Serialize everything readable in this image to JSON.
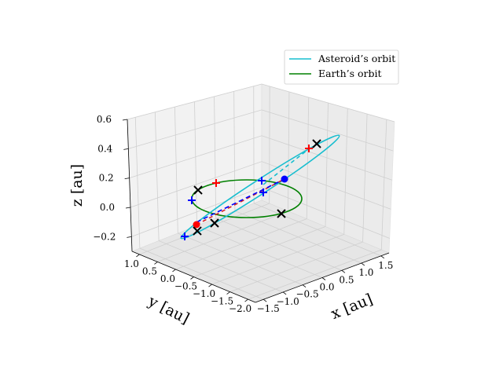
{
  "chart_data": {
    "type": "line3d",
    "xlabel": "x [au]",
    "ylabel": "y [au]",
    "zlabel": "z [au]",
    "x_ticks": [
      "−1.5",
      "−1.0",
      "−0.5",
      "0.0",
      "0.5",
      "1.0",
      "1.5"
    ],
    "y_ticks": [
      "1.0",
      "0.5",
      "0.0",
      "−0.5",
      "−1.0",
      "−1.5",
      "−2.0"
    ],
    "z_ticks": [
      "−0.2",
      "0.0",
      "0.2",
      "0.4",
      "0.6"
    ],
    "xlim": [
      -1.5,
      1.5
    ],
    "ylim": [
      -2.0,
      1.0
    ],
    "zlim": [
      -0.3,
      0.6
    ],
    "grid": true,
    "legend": {
      "placement": "top-right",
      "entries": [
        {
          "label": "Asteroid’s orbit",
          "color": "#17becf"
        },
        {
          "label": "Earth’s orbit",
          "color": "#008000"
        }
      ]
    },
    "series": [
      {
        "name": "Asteroid’s orbit",
        "color": "#17becf",
        "kind": "ellipse"
      },
      {
        "name": "Earth’s orbit",
        "color": "#008000",
        "kind": "ellipse"
      }
    ],
    "colors": {
      "red": "#ff0000",
      "blue": "#0000ff",
      "black": "#000000",
      "dashed_red": "#d62728",
      "dashed_blue": "#0000ff"
    }
  }
}
